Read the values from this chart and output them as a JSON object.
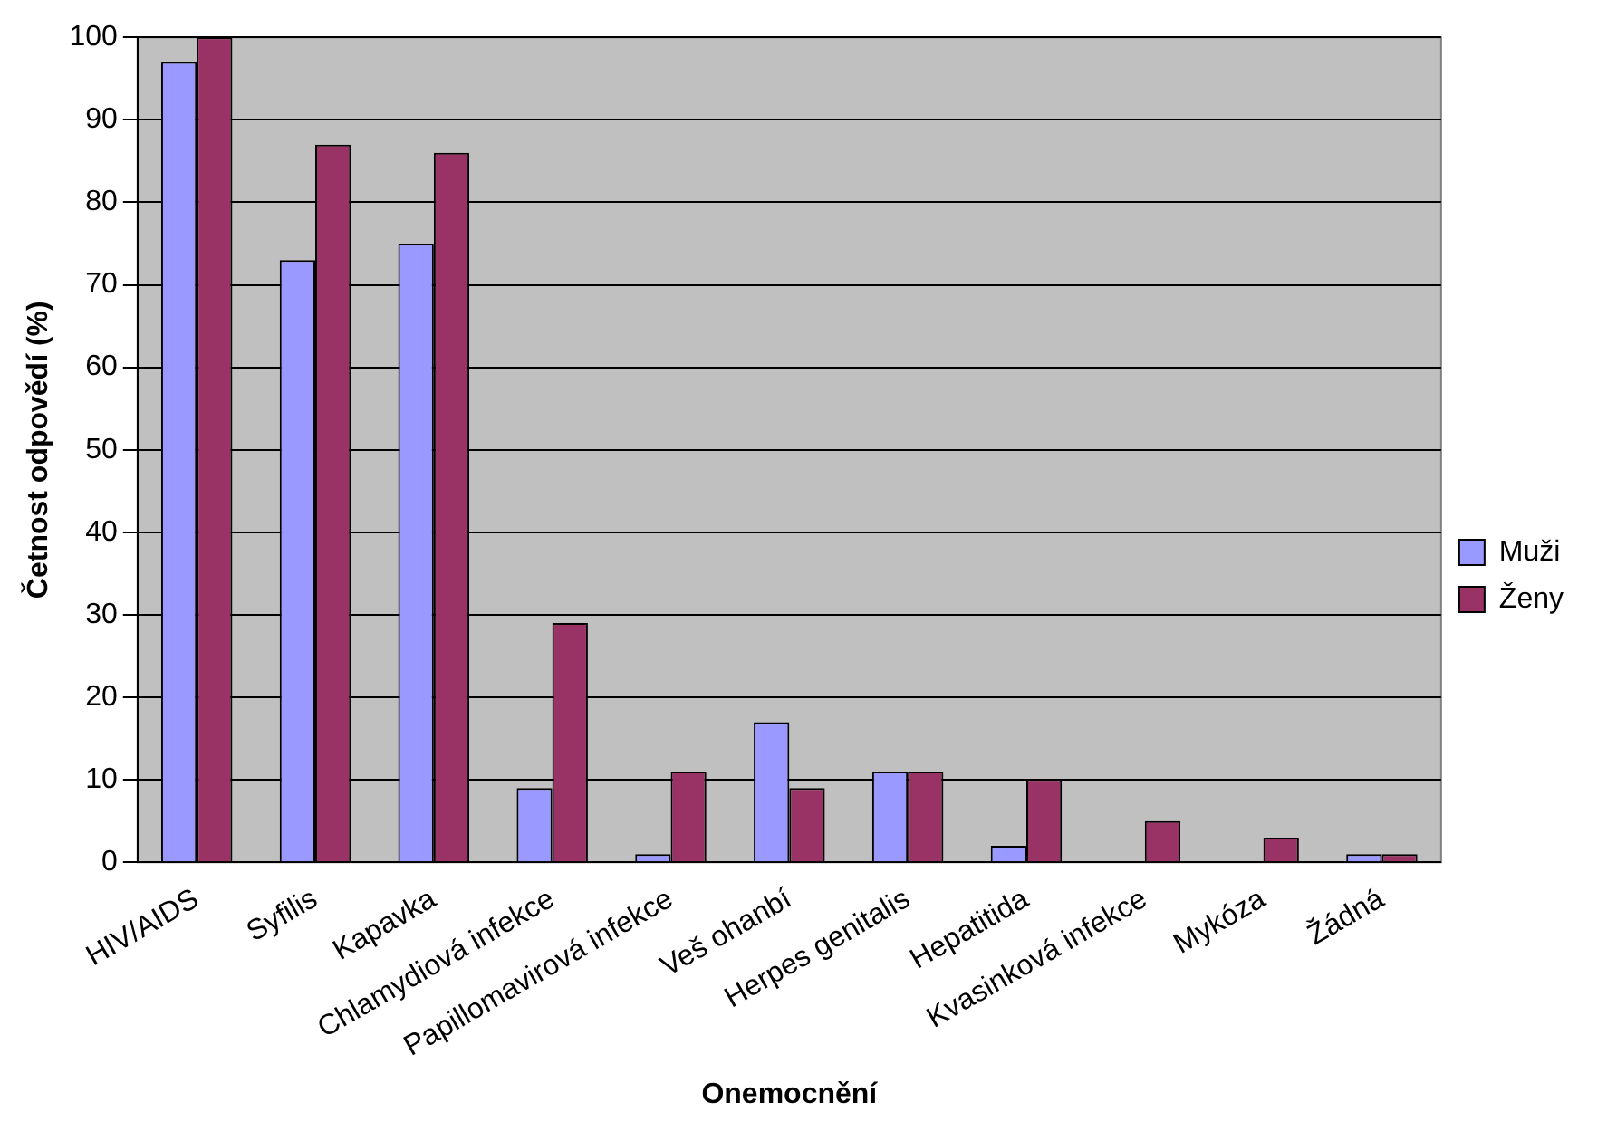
{
  "chart_data": {
    "type": "bar",
    "xlabel": "Onemocnění",
    "ylabel": "Četnost odpovědí (%)",
    "categories": [
      "HIV/AIDS",
      "Syfilis",
      "Kapavka",
      "Chlamydiová infekce",
      "Papillomavirová infekce",
      "Veš ohanbí",
      "Herpes genitalis",
      "Hepatitida",
      "Kvasinková infekce",
      "Mykóza",
      "Žádná"
    ],
    "series": [
      {
        "name": "Muži",
        "color": "#9999ff",
        "values": [
          97,
          73,
          75,
          9,
          1,
          17,
          11,
          2,
          0,
          0,
          1
        ]
      },
      {
        "name": "Ženy",
        "color": "#993366",
        "values": [
          100,
          87,
          86,
          29,
          11,
          9,
          11,
          10,
          5,
          3,
          1
        ]
      }
    ],
    "ylim": [
      0,
      100
    ],
    "yticks": [
      0,
      10,
      20,
      30,
      40,
      50,
      60,
      70,
      80,
      90,
      100
    ],
    "grid": "y",
    "legend": "right"
  }
}
